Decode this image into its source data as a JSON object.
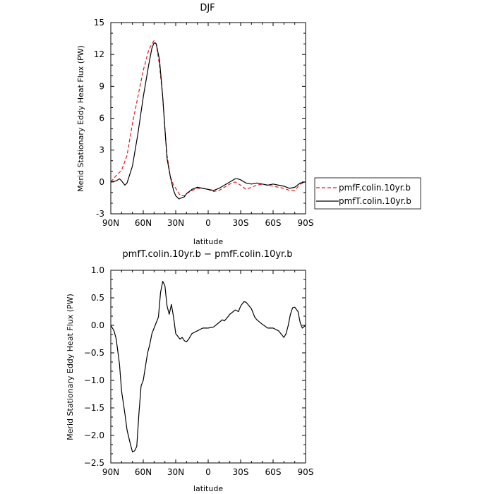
{
  "chart_data": [
    {
      "type": "line",
      "title": "DJF",
      "xlabel": "latitude",
      "ylabel": "Merid Stationary Eddy Heat Flux (PW)",
      "xlim": [
        90,
        -90
      ],
      "ylim": [
        -3,
        15
      ],
      "x_ticks": [
        90,
        60,
        30,
        0,
        -30,
        -60,
        -90
      ],
      "x_tick_labels": [
        "90N",
        "60N",
        "30N",
        "0",
        "30S",
        "60S",
        "90S"
      ],
      "y_ticks": [
        -3,
        0,
        3,
        6,
        9,
        12,
        15
      ],
      "y_tick_labels": [
        "-3",
        "0",
        "3",
        "6",
        "9",
        "12",
        "15"
      ],
      "grid": false,
      "legend_position": "right-outside",
      "series": [
        {
          "name": "pmfF.colin.10yr.b",
          "color": "#e41a1c",
          "dash": "dashed",
          "x": [
            90,
            85,
            80,
            75,
            70,
            65,
            60,
            55,
            52,
            50,
            48,
            45,
            42,
            40,
            38,
            35,
            32,
            30,
            27,
            25,
            22,
            20,
            15,
            10,
            5,
            0,
            -5,
            -10,
            -15,
            -20,
            -25,
            -30,
            -35,
            -40,
            -45,
            -50,
            -55,
            -60,
            -65,
            -70,
            -75,
            -80,
            -85,
            -90
          ],
          "values": [
            0,
            0.6,
            1.1,
            2.5,
            5.5,
            8.0,
            10.5,
            12.4,
            13.0,
            13.3,
            13.0,
            11.0,
            8.0,
            5.0,
            2.5,
            0.5,
            -0.3,
            -0.6,
            -1.1,
            -1.3,
            -1.3,
            -1.1,
            -0.8,
            -0.6,
            -0.6,
            -0.7,
            -0.9,
            -0.8,
            -0.5,
            -0.2,
            0.0,
            -0.3,
            -0.7,
            -0.5,
            -0.3,
            -0.2,
            -0.3,
            -0.4,
            -0.5,
            -0.6,
            -0.8,
            -0.8,
            -0.2,
            0.0
          ]
        },
        {
          "name": "pmfT.colin.10yr.b",
          "color": "#000000",
          "dash": "solid",
          "x": [
            90,
            85,
            82,
            80,
            77,
            75,
            70,
            65,
            60,
            55,
            52,
            50,
            48,
            45,
            42,
            40,
            38,
            35,
            32,
            30,
            27,
            25,
            22,
            20,
            15,
            10,
            5,
            0,
            -5,
            -10,
            -15,
            -20,
            -25,
            -27,
            -30,
            -35,
            -40,
            -45,
            -50,
            -55,
            -60,
            -65,
            -70,
            -75,
            -80,
            -85,
            -90
          ],
          "values": [
            0,
            0.1,
            0.3,
            0.1,
            -0.3,
            -0.1,
            1.5,
            4.5,
            8.0,
            11.0,
            12.6,
            13.1,
            13.0,
            11.5,
            8.0,
            5.0,
            2.2,
            0.5,
            -0.8,
            -1.3,
            -1.6,
            -1.5,
            -1.4,
            -1.1,
            -0.7,
            -0.5,
            -0.6,
            -0.7,
            -0.8,
            -0.6,
            -0.3,
            0.0,
            0.3,
            0.3,
            0.2,
            -0.1,
            -0.2,
            -0.1,
            -0.2,
            -0.3,
            -0.2,
            -0.3,
            -0.4,
            -0.6,
            -0.5,
            -0.1,
            0.0
          ]
        }
      ]
    },
    {
      "type": "line",
      "title": "pmfT.colin.10yr.b − pmfF.colin.10yr.b",
      "xlabel": "latitude",
      "ylabel": "Merid Stationary Eddy Heat Flux (PW)",
      "xlim": [
        90,
        -90
      ],
      "ylim": [
        -2.5,
        1.0
      ],
      "x_ticks": [
        90,
        60,
        30,
        0,
        -30,
        -60,
        -90
      ],
      "x_tick_labels": [
        "90N",
        "60N",
        "30N",
        "0",
        "30S",
        "60S",
        "90S"
      ],
      "y_ticks": [
        -2.5,
        -2.0,
        -1.5,
        -1.0,
        -0.5,
        0.0,
        0.5,
        1.0
      ],
      "y_tick_labels": [
        "−2.5",
        "−2.0",
        "−1.5",
        "−1.0",
        "−0.5",
        "0.0",
        "0.5",
        "1.0"
      ],
      "grid": false,
      "series": [
        {
          "color": "#000000",
          "dash": "solid",
          "x": [
            90,
            87,
            85,
            82,
            80,
            77,
            75,
            72,
            70,
            68,
            66,
            64,
            62,
            60,
            58,
            56,
            54,
            52,
            50,
            48,
            46,
            44,
            42,
            40,
            38,
            36,
            34,
            32,
            30,
            28,
            26,
            24,
            22,
            20,
            18,
            15,
            12,
            10,
            5,
            0,
            -5,
            -10,
            -13,
            -15,
            -18,
            -20,
            -25,
            -28,
            -30,
            -33,
            -35,
            -38,
            -40,
            -43,
            -45,
            -50,
            -55,
            -60,
            -65,
            -70,
            -72,
            -74,
            -76,
            -78,
            -80,
            -83,
            -85,
            -87,
            -90
          ],
          "values": [
            0,
            -0.1,
            -0.25,
            -0.7,
            -1.2,
            -1.6,
            -1.9,
            -2.15,
            -2.3,
            -2.28,
            -2.2,
            -1.6,
            -1.1,
            -1.0,
            -0.75,
            -0.5,
            -0.35,
            -0.15,
            -0.05,
            0.05,
            0.15,
            0.6,
            0.8,
            0.72,
            0.35,
            0.2,
            0.38,
            0.15,
            -0.15,
            -0.2,
            -0.25,
            -0.22,
            -0.28,
            -0.3,
            -0.25,
            -0.15,
            -0.12,
            -0.1,
            -0.05,
            -0.05,
            -0.03,
            0.05,
            0.1,
            0.08,
            0.15,
            0.2,
            0.28,
            0.25,
            0.35,
            0.43,
            0.42,
            0.35,
            0.3,
            0.15,
            0.1,
            0.02,
            -0.05,
            -0.05,
            -0.1,
            -0.22,
            -0.15,
            0.0,
            0.2,
            0.32,
            0.33,
            0.25,
            0.05,
            -0.05,
            0.0
          ]
        }
      ]
    }
  ]
}
